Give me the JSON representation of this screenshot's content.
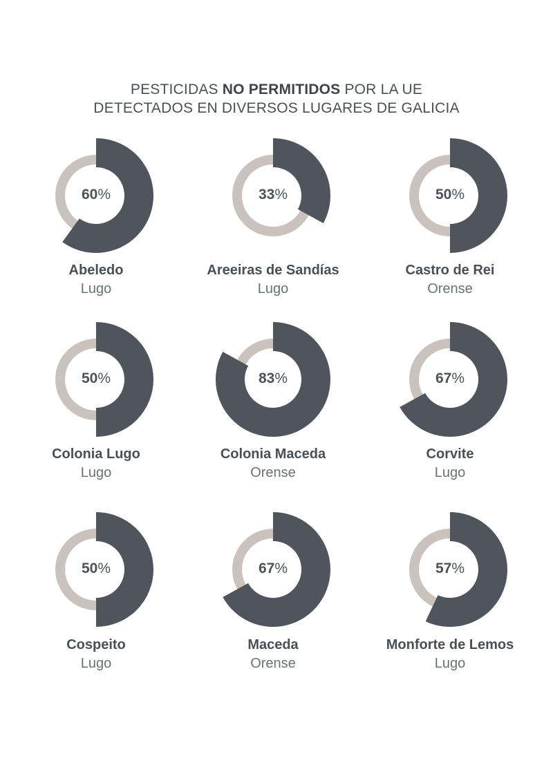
{
  "title": {
    "line1_pre": "PESTICIDAS ",
    "line1_bold": "NO PERMITIDOS",
    "line1_post": " POR LA UE",
    "line2": "DETECTADOS EN DIVERSOS LUGARES DE GALICIA"
  },
  "colors": {
    "value": "#50555d",
    "track": "#c9c2bd"
  },
  "chart_data": {
    "type": "donut",
    "title": "PESTICIDAS NO PERMITIDOS POR LA UE DETECTADOS EN DIVERSOS LUGARES DE GALICIA",
    "unit": "%",
    "items": [
      {
        "place": "Abeledo",
        "region": "Lugo",
        "value": 60,
        "label": "60"
      },
      {
        "place": "Areeiras de Sandías",
        "region": "Lugo",
        "value": 33,
        "label": "33"
      },
      {
        "place": "Castro de Rei",
        "region": "Orense",
        "value": 50,
        "label": "50"
      },
      {
        "place": "Colonia Lugo",
        "region": "Lugo",
        "value": 50,
        "label": "50"
      },
      {
        "place": "Colonia Maceda",
        "region": "Orense",
        "value": 83,
        "label": "83"
      },
      {
        "place": "Corvite",
        "region": "Lugo",
        "value": 67,
        "label": "67"
      },
      {
        "place": "Cospeito",
        "region": "Lugo",
        "value": 50,
        "label": "50"
      },
      {
        "place": "Maceda",
        "region": "Orense",
        "value": 67,
        "label": "67"
      },
      {
        "place": "Monforte de Lemos",
        "region": "Lugo",
        "value": 57,
        "label": "57"
      }
    ]
  }
}
